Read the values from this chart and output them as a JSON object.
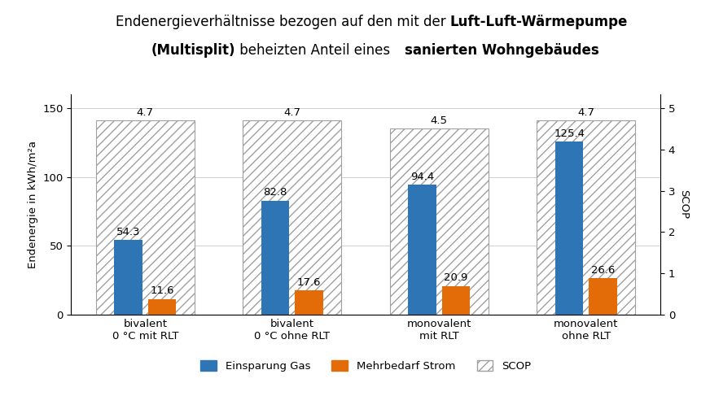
{
  "categories": [
    "bivalent\n0 °C mit RLT",
    "bivalent\n0 °C ohne RLT",
    "monovalent\nmit RLT",
    "monovalent\nohne RLT"
  ],
  "gas_savings": [
    54.3,
    82.8,
    94.4,
    125.4
  ],
  "power_demand": [
    11.6,
    17.6,
    20.9,
    26.6
  ],
  "scop_values": [
    4.7,
    4.7,
    4.5,
    4.7
  ],
  "gas_color": "#2E75B6",
  "power_color": "#E36C09",
  "title_normal1": "Endenergieverhältnisse bezogen auf den mit der ",
  "title_bold1": "Luft-Luft-Wärmepumpe",
  "title_bold2a": "(Multisplit)",
  "title_normal2": " beheizten Anteil eines ",
  "title_bold2b": "sanierten Wohngebäudes",
  "ylabel_left": "Endenergie in kWh/m²a",
  "ylabel_right": "SCOP",
  "ylim_left": [
    0,
    160
  ],
  "ylim_right": [
    0,
    5.333
  ],
  "yticks_left": [
    0,
    50,
    100,
    150
  ],
  "yticks_right": [
    0,
    1,
    2,
    3,
    4,
    5
  ],
  "legend_gas": "Einsparung Gas",
  "legend_power": "Mehrbedarf Strom",
  "legend_scop": "SCOP",
  "background_color": "#FFFFFF",
  "title_fontsize": 12,
  "label_fontsize": 9.5,
  "axis_fontsize": 9.5,
  "tick_fontsize": 9.5
}
